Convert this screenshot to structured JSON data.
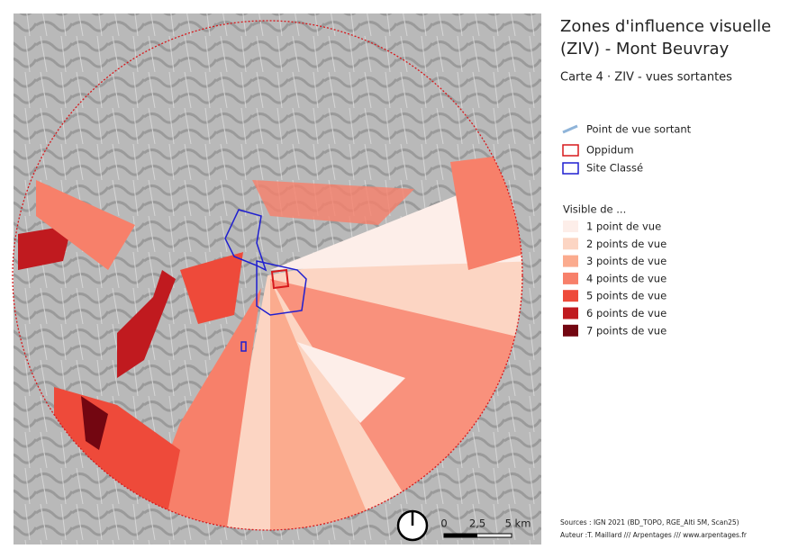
{
  "header": {
    "title_lines": [
      "Zones d'influence visuelle",
      "(ZIV) - Mont Beuvray"
    ],
    "subtitle": "Carte 4 · ZIV - vues sortantes"
  },
  "legend": {
    "symbols": [
      {
        "label": "Point de vue sortant",
        "color": "#8fb4d9"
      },
      {
        "label": "Oppidum",
        "color": "#d7191c"
      },
      {
        "label": "Site Classé",
        "color": "#1f1fd0"
      }
    ],
    "classes_title": "Visible de ...",
    "classes": [
      {
        "label": "1 point de vue",
        "color": "#fdeee9"
      },
      {
        "label": "2 points de vue",
        "color": "#fcd5c3"
      },
      {
        "label": "3 points de vue",
        "color": "#fbab8e"
      },
      {
        "label": "4 points de vue",
        "color": "#f7806a"
      },
      {
        "label": "5 points de vue",
        "color": "#ee4a3a"
      },
      {
        "label": "6 points de vue",
        "color": "#c01a1f"
      },
      {
        "label": "7 points de vue",
        "color": "#730611"
      }
    ]
  },
  "scale": {
    "labels": [
      "0",
      "2,5",
      "5 km"
    ]
  },
  "sources": [
    "Sources : IGN 2021 (BD_TOPO, RGE_Alti 5M, Scan25)",
    "Auteur :T. Maillard /// Arpentages /// www.arpentages.fr"
  ]
}
